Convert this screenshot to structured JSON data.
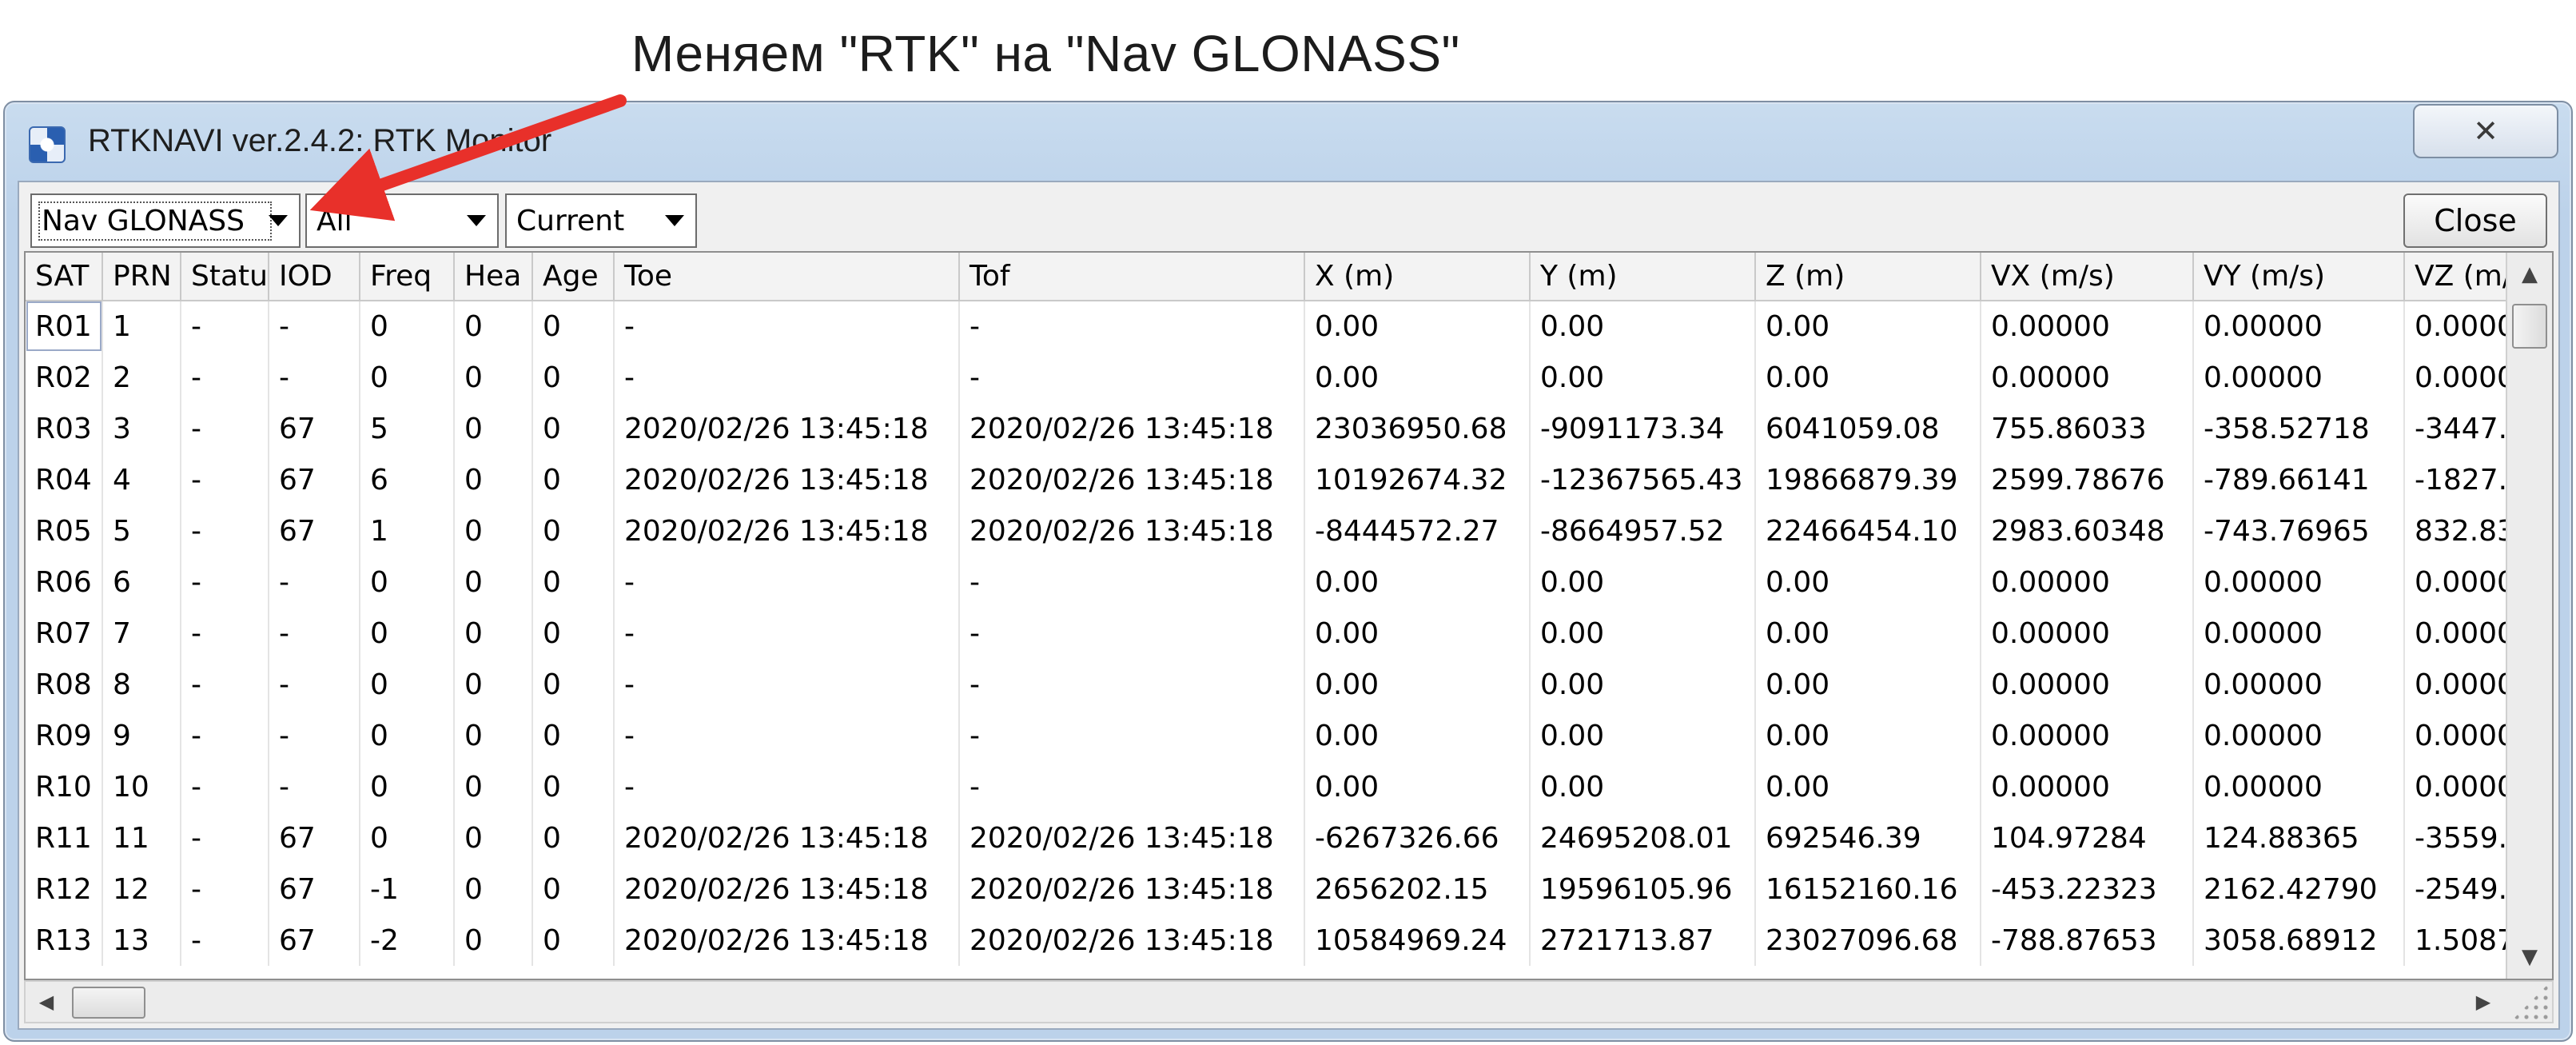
{
  "annotation": {
    "caption": "Меняем \"RTK\" на \"Nav GLONASS\""
  },
  "window": {
    "title": "RTKNAVI ver.2.4.2: RTK Monitor",
    "close_glyph": "✕"
  },
  "toolbar": {
    "type_combo": "Nav GLONASS",
    "sat_combo": "All",
    "time_combo": "Current",
    "close_label": "Close"
  },
  "table": {
    "columns": [
      "SAT",
      "PRN",
      "Statu",
      "IOD",
      "Freq",
      "Hea",
      "Age",
      "Toe",
      "Tof",
      "X (m)",
      "Y (m)",
      "Z (m)",
      "VX (m/s)",
      "VY (m/s)",
      "VZ (m/"
    ],
    "rows": [
      [
        "R01",
        "1",
        "-",
        "-",
        "0",
        "0",
        "0",
        "-",
        "-",
        "0.00",
        "0.00",
        "0.00",
        "0.00000",
        "0.00000",
        "0.0000"
      ],
      [
        "R02",
        "2",
        "-",
        "-",
        "0",
        "0",
        "0",
        "-",
        "-",
        "0.00",
        "0.00",
        "0.00",
        "0.00000",
        "0.00000",
        "0.0000"
      ],
      [
        "R03",
        "3",
        "-",
        "67",
        "5",
        "0",
        "0",
        "2020/02/26 13:45:18",
        "2020/02/26 13:45:18",
        "23036950.68",
        "-9091173.34",
        "6041059.08",
        "755.86033",
        "-358.52718",
        "-3447."
      ],
      [
        "R04",
        "4",
        "-",
        "67",
        "6",
        "0",
        "0",
        "2020/02/26 13:45:18",
        "2020/02/26 13:45:18",
        "10192674.32",
        "-12367565.43",
        "19866879.39",
        "2599.78676",
        "-789.66141",
        "-1827."
      ],
      [
        "R05",
        "5",
        "-",
        "67",
        "1",
        "0",
        "0",
        "2020/02/26 13:45:18",
        "2020/02/26 13:45:18",
        "-8444572.27",
        "-8664957.52",
        "22466454.10",
        "2983.60348",
        "-743.76965",
        "832.83"
      ],
      [
        "R06",
        "6",
        "-",
        "-",
        "0",
        "0",
        "0",
        "-",
        "-",
        "0.00",
        "0.00",
        "0.00",
        "0.00000",
        "0.00000",
        "0.0000"
      ],
      [
        "R07",
        "7",
        "-",
        "-",
        "0",
        "0",
        "0",
        "-",
        "-",
        "0.00",
        "0.00",
        "0.00",
        "0.00000",
        "0.00000",
        "0.0000"
      ],
      [
        "R08",
        "8",
        "-",
        "-",
        "0",
        "0",
        "0",
        "-",
        "-",
        "0.00",
        "0.00",
        "0.00",
        "0.00000",
        "0.00000",
        "0.0000"
      ],
      [
        "R09",
        "9",
        "-",
        "-",
        "0",
        "0",
        "0",
        "-",
        "-",
        "0.00",
        "0.00",
        "0.00",
        "0.00000",
        "0.00000",
        "0.0000"
      ],
      [
        "R10",
        "10",
        "-",
        "-",
        "0",
        "0",
        "0",
        "-",
        "-",
        "0.00",
        "0.00",
        "0.00",
        "0.00000",
        "0.00000",
        "0.0000"
      ],
      [
        "R11",
        "11",
        "-",
        "67",
        "0",
        "0",
        "0",
        "2020/02/26 13:45:18",
        "2020/02/26 13:45:18",
        "-6267326.66",
        "24695208.01",
        "692546.39",
        "104.97284",
        "124.88365",
        "-3559."
      ],
      [
        "R12",
        "12",
        "-",
        "67",
        "-1",
        "0",
        "0",
        "2020/02/26 13:45:18",
        "2020/02/26 13:45:18",
        "2656202.15",
        "19596105.96",
        "16152160.16",
        "-453.22323",
        "2162.42790",
        "-2549."
      ],
      [
        "R13",
        "13",
        "-",
        "67",
        "-2",
        "0",
        "0",
        "2020/02/26 13:45:18",
        "2020/02/26 13:45:18",
        "10584969.24",
        "2721713.87",
        "23027096.68",
        "-788.87653",
        "3058.68912",
        "1.5087"
      ]
    ]
  },
  "colors": {
    "annotation_arrow": "#e8302a"
  }
}
